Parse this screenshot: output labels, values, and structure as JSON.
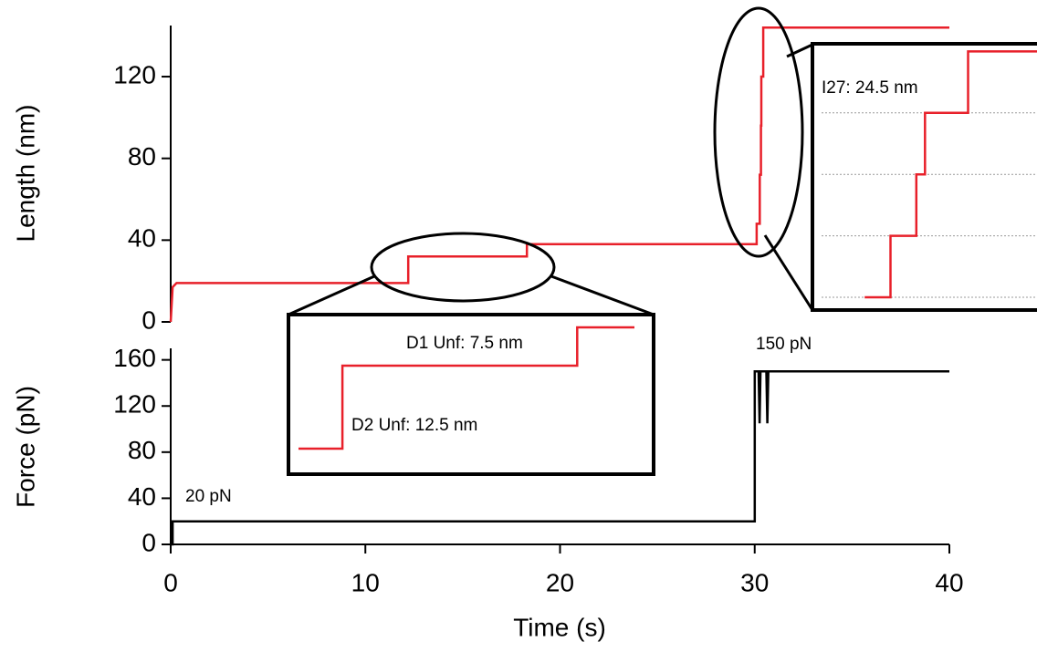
{
  "chart_data": [
    {
      "type": "line",
      "ylabel": "Length (nm)",
      "xlim": [
        0,
        40
      ],
      "ylim": [
        0,
        145
      ],
      "yticks": [
        0,
        40,
        80,
        120
      ],
      "series": [
        {
          "color": "#e8202a",
          "x": [
            0,
            0.1,
            0.3,
            12.2,
            12.2,
            18.3,
            18.3,
            30.1,
            30.1,
            30.26,
            30.26,
            30.32,
            30.32,
            30.34,
            30.34,
            30.44,
            30.44,
            40
          ],
          "values": [
            0,
            17,
            19,
            19,
            32,
            32,
            38,
            38,
            48,
            48,
            72,
            72,
            96,
            96,
            120,
            120,
            144,
            144
          ]
        }
      ],
      "insets": [
        {
          "xlim": [
            11.1,
            19.9
          ],
          "ylim": [
            15,
            40
          ],
          "x": [
            11.1,
            12.25,
            12.25,
            18.4,
            18.4,
            19.9
          ],
          "values": [
            19,
            19,
            32,
            32,
            38,
            38
          ],
          "annotations": [
            "D1 Unf: 7.5 nm",
            "D2 Unf: 12.5 nm"
          ]
        },
        {
          "xlim": [
            30.1,
            30.6
          ],
          "ylim": [
            43,
            147
          ],
          "gridlines": [
            48,
            72,
            96,
            120
          ],
          "x": [
            30.2,
            30.26,
            30.26,
            30.32,
            30.32,
            30.34,
            30.34,
            30.44,
            30.44,
            30.6
          ],
          "values": [
            48,
            48,
            72,
            72,
            96,
            96,
            120,
            120,
            144,
            144
          ],
          "annotations": [
            "I27: 24.5 nm"
          ]
        }
      ]
    },
    {
      "type": "line",
      "ylabel": "Force (pN)",
      "xlabel": "Time (s)",
      "xlim": [
        0,
        40
      ],
      "xticks": [
        0,
        10,
        20,
        30,
        40
      ],
      "ylim": [
        0,
        170
      ],
      "yticks": [
        0,
        40,
        80,
        120,
        160
      ],
      "series": [
        {
          "color": "#000000",
          "x": [
            0,
            0.1,
            0.1,
            30.0,
            30.0,
            30.2,
            30.25,
            30.3,
            30.6,
            30.65,
            30.7,
            40
          ],
          "values": [
            0,
            0,
            20,
            20,
            150,
            150,
            105,
            150,
            150,
            105,
            150,
            150
          ]
        }
      ],
      "annotations": [
        "20 pN",
        "150 pN"
      ]
    }
  ]
}
